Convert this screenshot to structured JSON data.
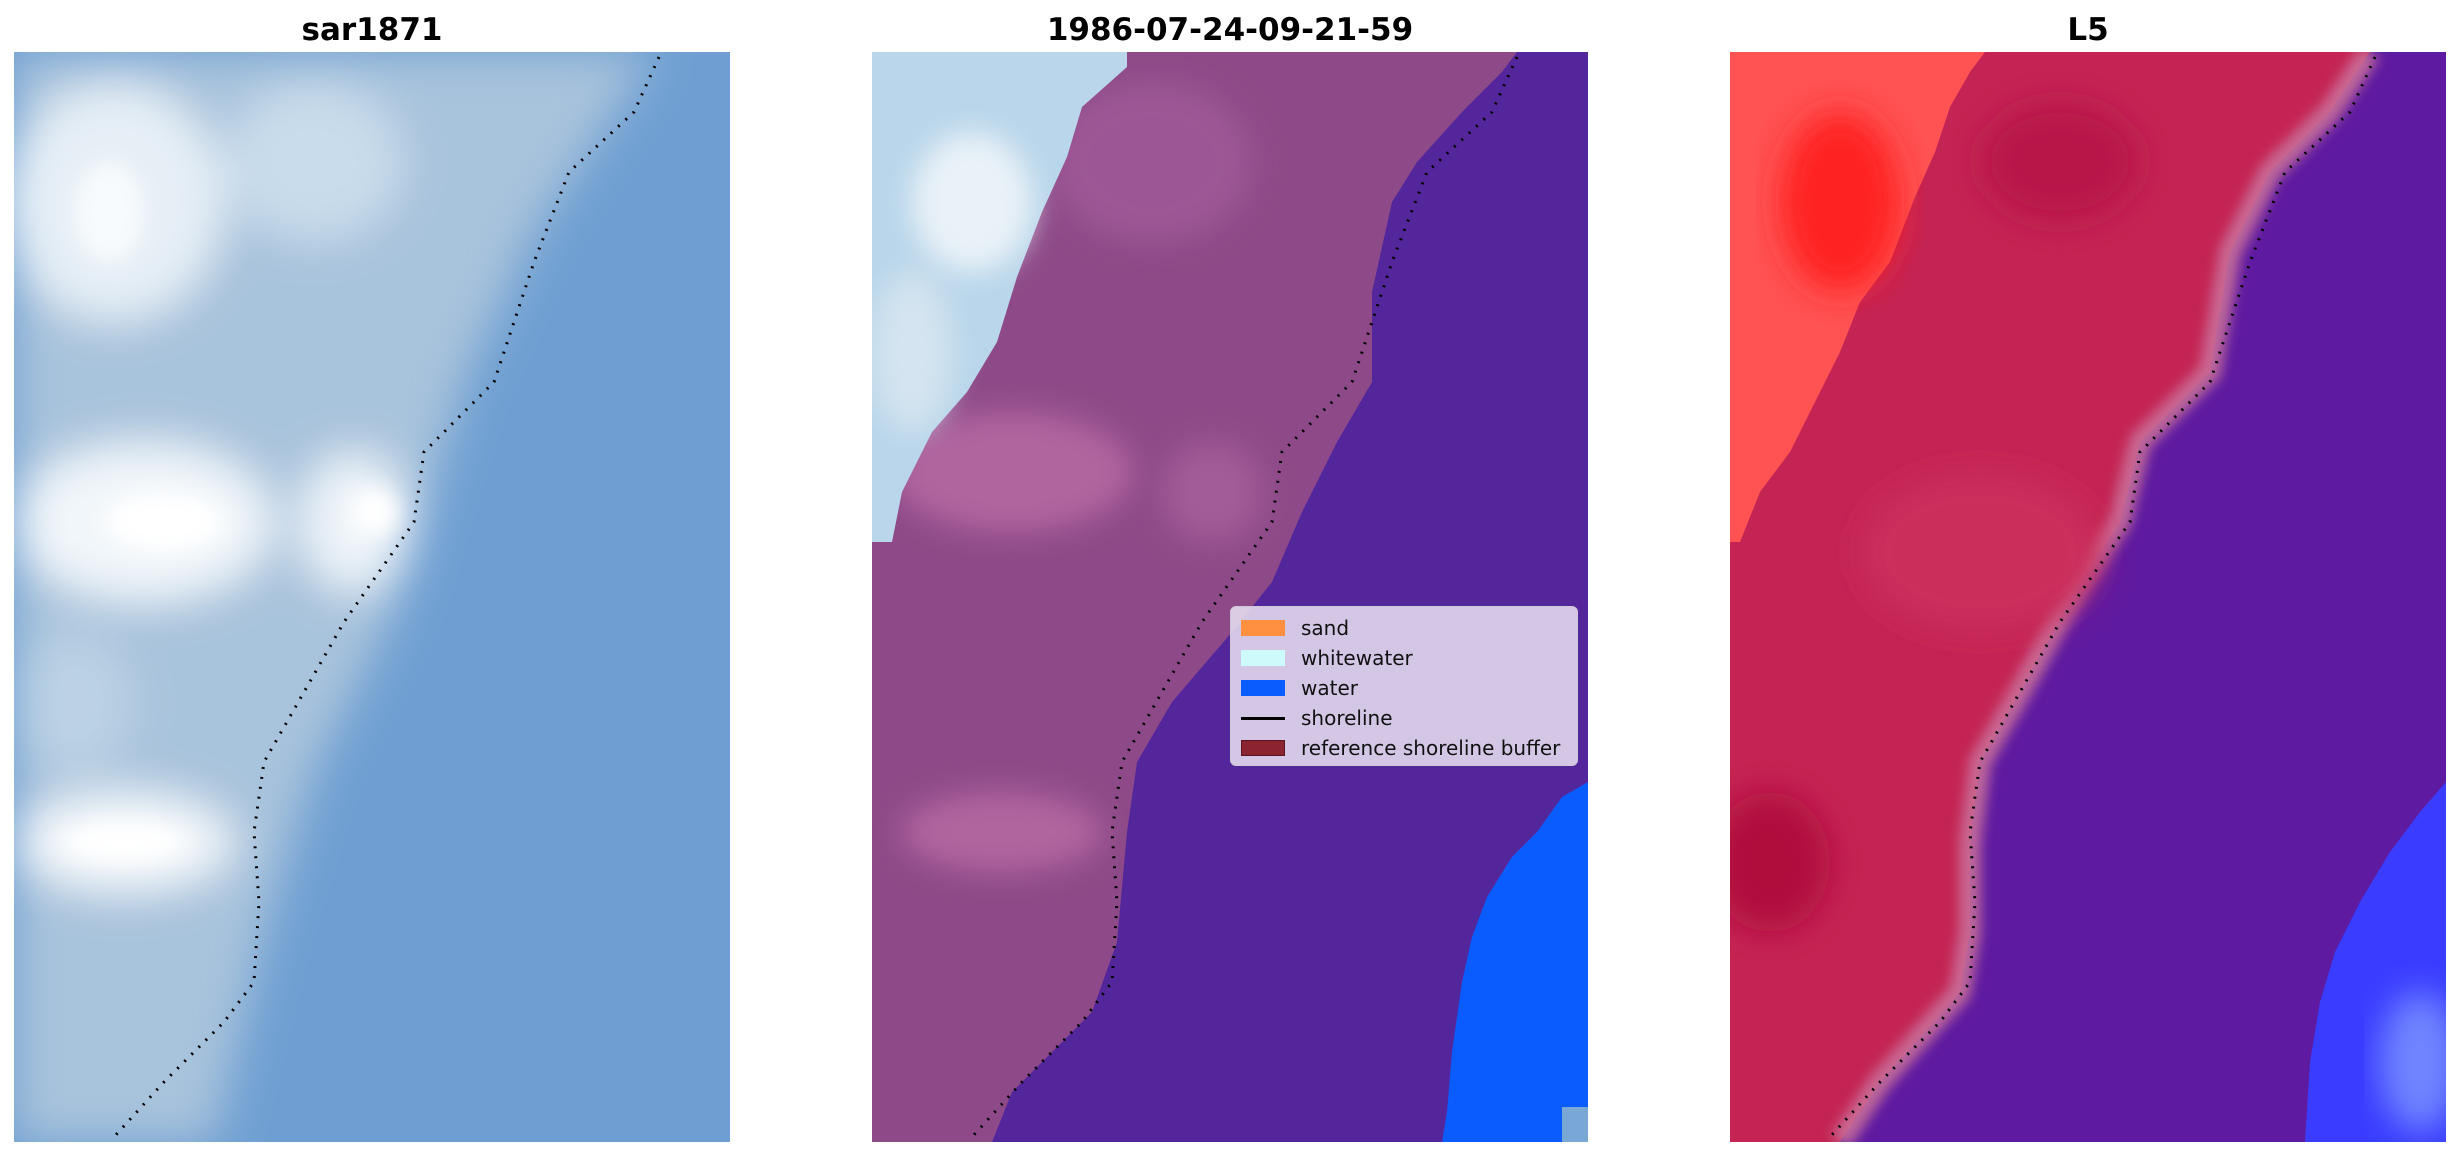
{
  "panels": [
    {
      "title": "sar1871"
    },
    {
      "title": "1986-07-24-09-21-59"
    },
    {
      "title": "L5"
    }
  ],
  "legend": {
    "items": [
      {
        "label": "sand",
        "color": "#ff9042"
      },
      {
        "label": "whitewater",
        "color": "#cdfbfb"
      },
      {
        "label": "water",
        "color": "#0a5cff"
      },
      {
        "label": "shoreline",
        "color": "#000000"
      },
      {
        "label": "reference shoreline buffer",
        "color": "#8b2331"
      }
    ]
  },
  "colors": {
    "sky_blue": "#6f9fd2",
    "foam": "#cfe2ee",
    "sand_overlay": "#8e4a88",
    "water_overlay": "#54269b",
    "water_blue": "#0a5cff",
    "l5_red": "#ff3a3a",
    "l5_crimson": "#c42453",
    "l5_purple": "#5e1aa0",
    "l5_blue": "#3340ff"
  }
}
